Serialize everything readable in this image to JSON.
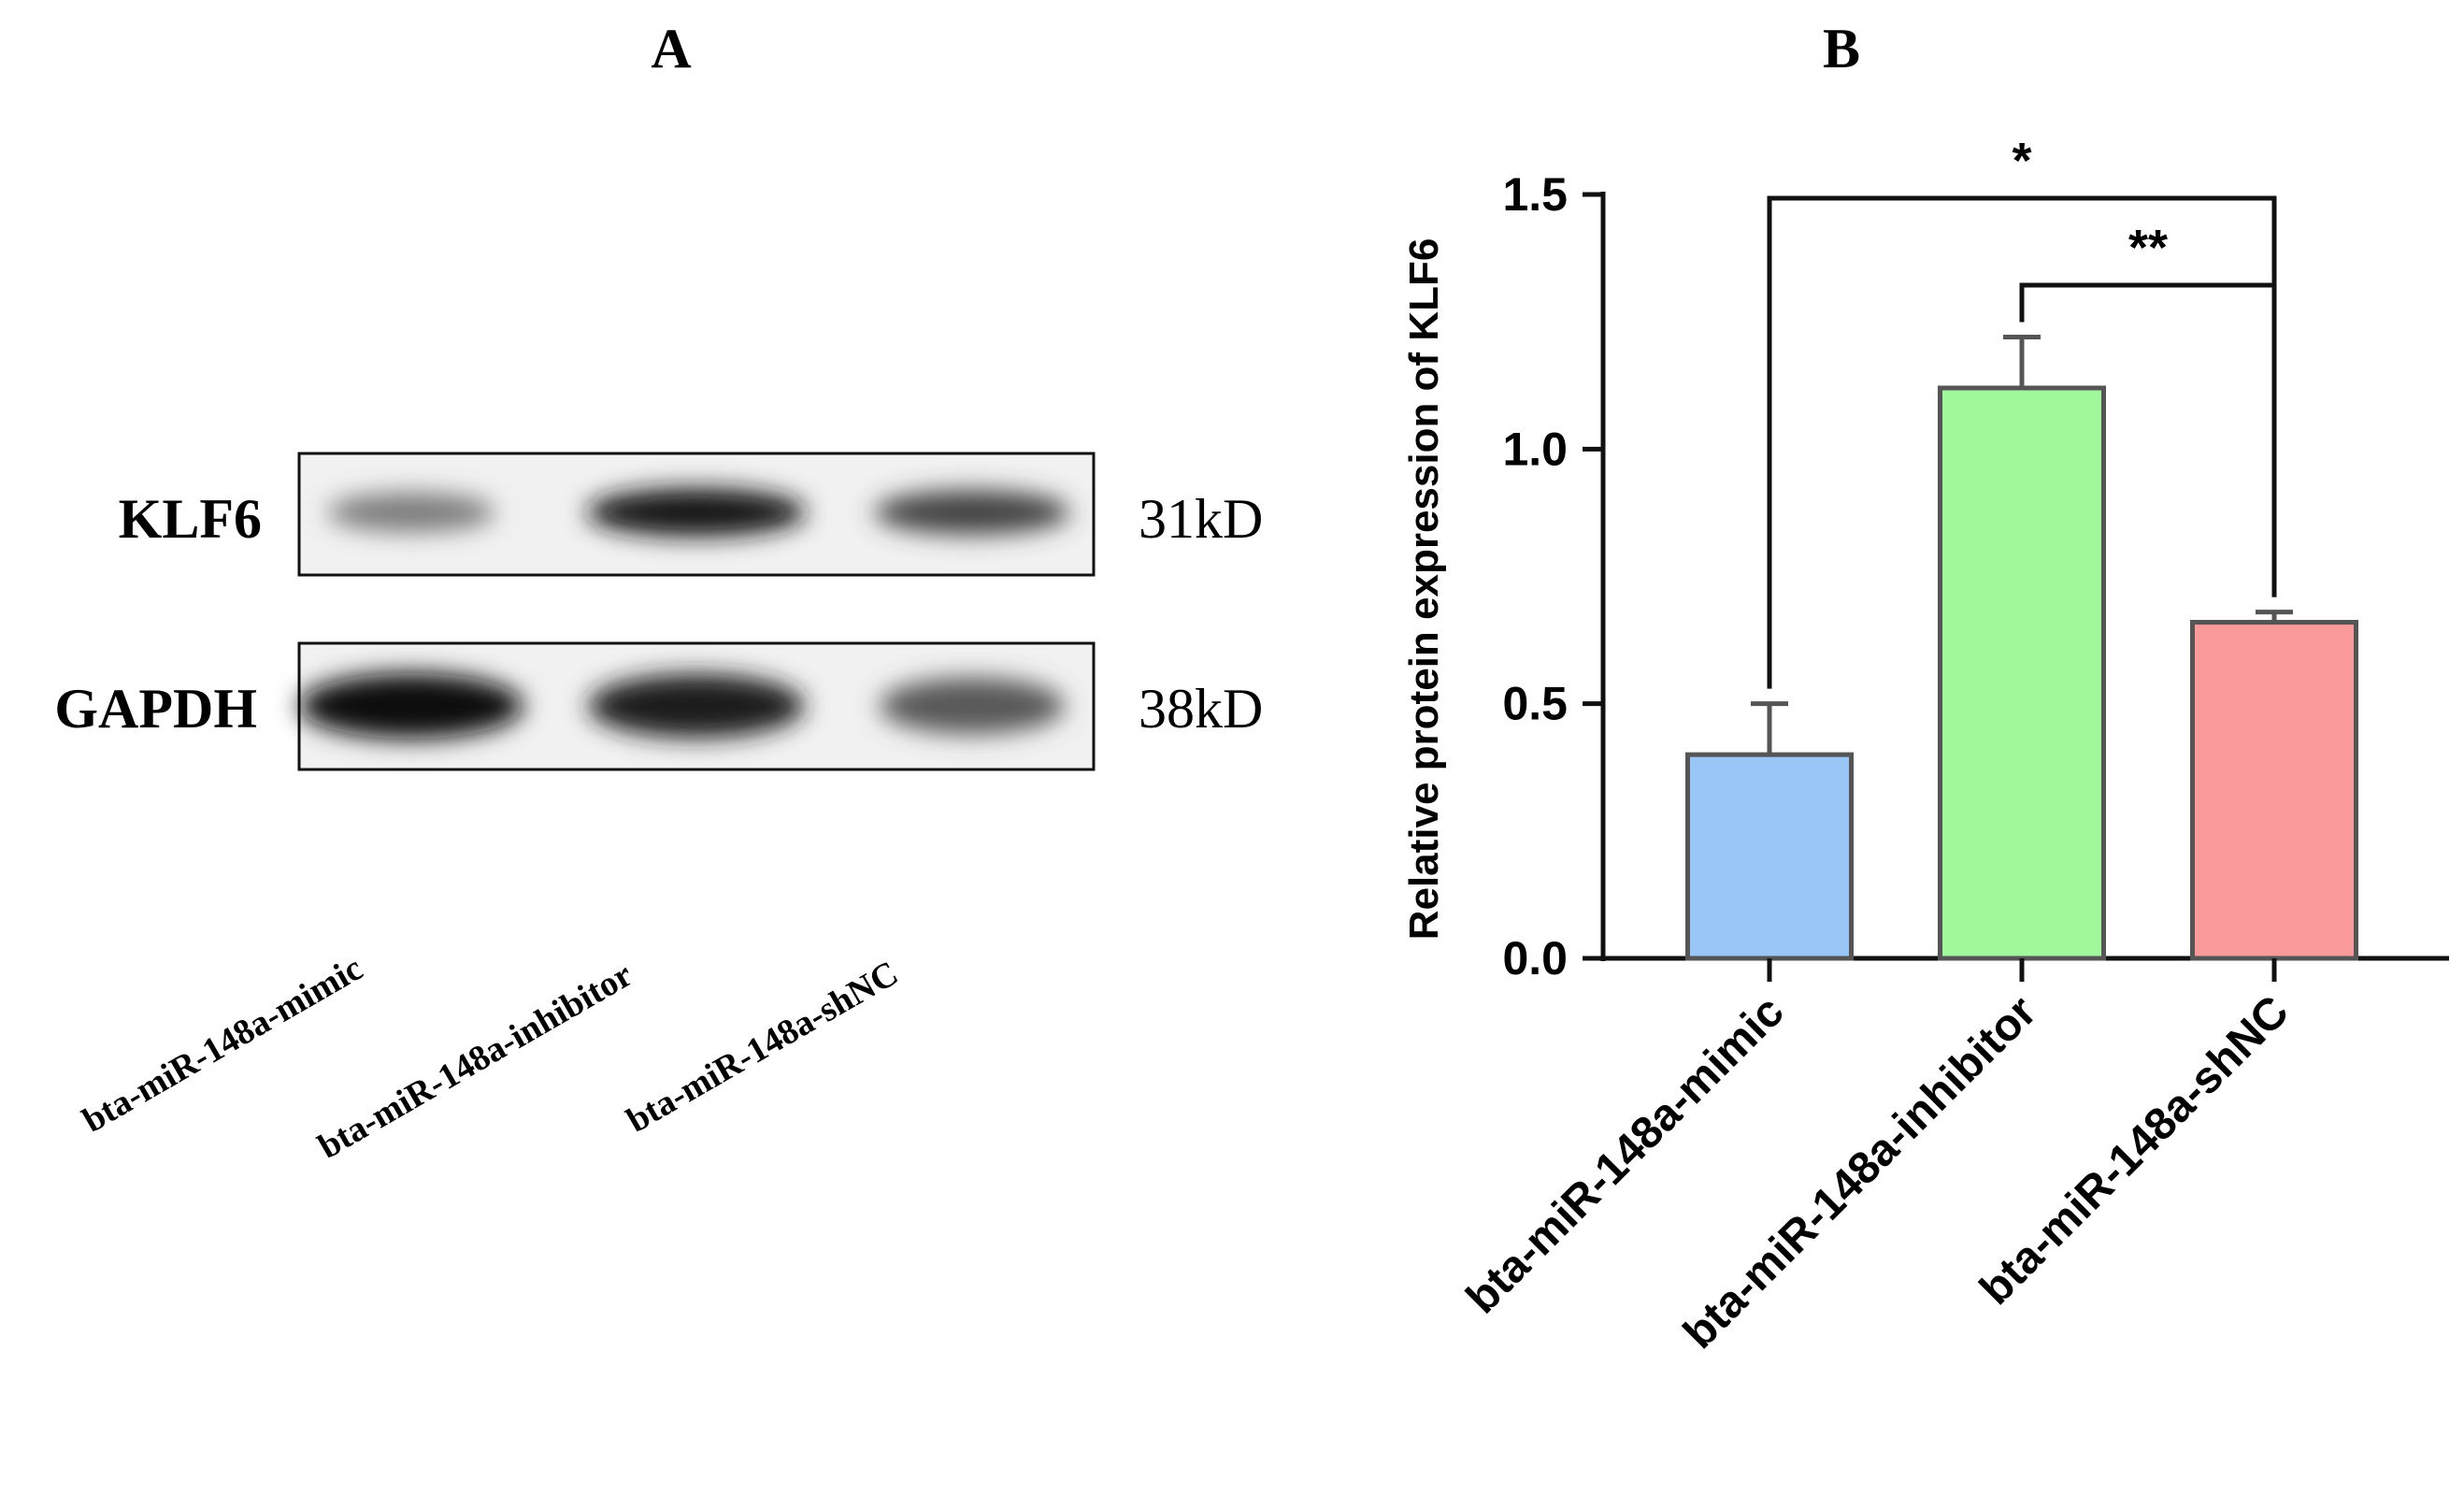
{
  "panel_a": {
    "label": "A",
    "rows": [
      {
        "protein": "KLF6",
        "size": "31kD",
        "intensities": [
          0.45,
          0.95,
          0.72
        ]
      },
      {
        "protein": "GAPDH",
        "size": "38kD",
        "intensities": [
          1.0,
          0.92,
          0.62
        ]
      }
    ],
    "lanes": [
      "bta-miR-148a-mimic",
      "bta-miR-148a-inhibitor",
      "bta-miR-148a-shNC"
    ]
  },
  "panel_b": {
    "label": "B"
  },
  "chart_data": {
    "type": "bar",
    "title": "",
    "xlabel": "",
    "ylabel": "Relative protein expression of KLF6",
    "categories": [
      "bta-miR-148a-mimic",
      "bta-miR-148a-inhibitor",
      "bta-miR-148a-shNC"
    ],
    "values": [
      0.4,
      1.12,
      0.66
    ],
    "errors": [
      0.1,
      0.1,
      0.02
    ],
    "colors": [
      "#99c5f7",
      "#a0f79c",
      "#fa9a9a"
    ],
    "ylim": [
      0,
      1.5
    ],
    "yticks": [
      "0.0",
      "0.5",
      "1.0",
      "1.5"
    ],
    "grid": false,
    "significance": [
      {
        "from": 0,
        "to": 2,
        "label": "*"
      },
      {
        "from": 1,
        "to": 2,
        "label": "**"
      }
    ]
  }
}
